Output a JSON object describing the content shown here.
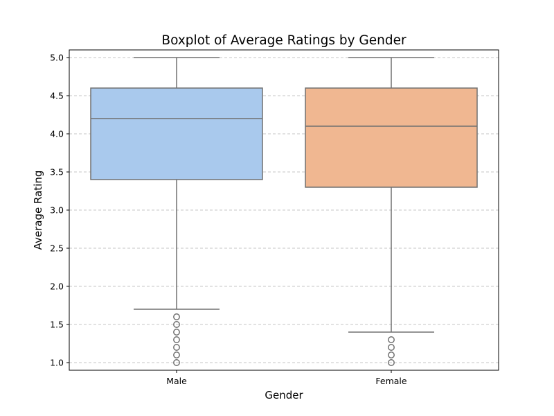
{
  "chart_data": {
    "type": "boxplot",
    "title": "Boxplot of Average Ratings by Gender",
    "xlabel": "Gender",
    "ylabel": "Average Rating",
    "ylim": [
      0.9,
      5.1
    ],
    "yticks": [
      "1.0",
      "1.5",
      "2.0",
      "2.5",
      "3.0",
      "3.5",
      "4.0",
      "4.5",
      "5.0"
    ],
    "grid": "y-dashed",
    "categories": [
      "Male",
      "Female"
    ],
    "boxes": [
      {
        "category": "Male",
        "whisker_low": 1.7,
        "q1": 3.4,
        "median": 4.2,
        "q3": 4.6,
        "whisker_high": 5.0,
        "outliers": [
          1.0,
          1.1,
          1.2,
          1.3,
          1.4,
          1.5,
          1.6
        ],
        "color": "#a9c9ed"
      },
      {
        "category": "Female",
        "whisker_low": 1.4,
        "q1": 3.3,
        "median": 4.1,
        "q3": 4.6,
        "whisker_high": 5.0,
        "outliers": [
          1.0,
          1.1,
          1.2,
          1.3
        ],
        "color": "#f0b791"
      }
    ]
  }
}
